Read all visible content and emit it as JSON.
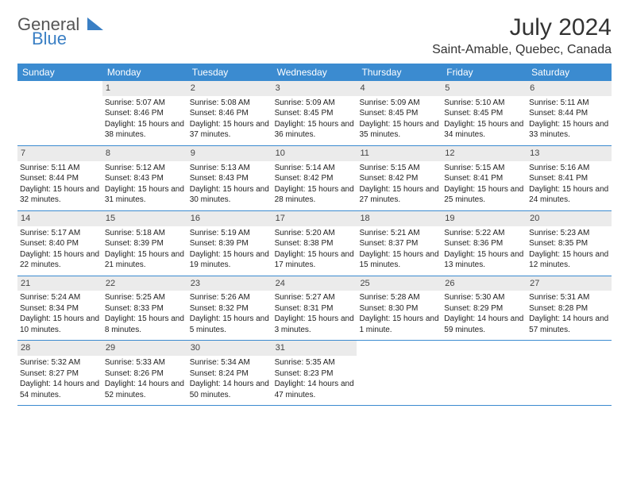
{
  "brand": {
    "general": "General",
    "blue": "Blue"
  },
  "title": "July 2024",
  "subtitle": "Saint-Amable, Quebec, Canada",
  "colors": {
    "header_bg": "#3b8bd0",
    "header_text": "#ffffff",
    "daynum_bg": "#ebebeb",
    "rule": "#3b8bd0",
    "logo_gray": "#555555",
    "logo_blue": "#3a7fc4",
    "text": "#222222"
  },
  "weekdays": [
    "Sunday",
    "Monday",
    "Tuesday",
    "Wednesday",
    "Thursday",
    "Friday",
    "Saturday"
  ],
  "weeks": [
    [
      null,
      {
        "n": "1",
        "sr": "Sunrise: 5:07 AM",
        "ss": "Sunset: 8:46 PM",
        "dl": "Daylight: 15 hours and 38 minutes."
      },
      {
        "n": "2",
        "sr": "Sunrise: 5:08 AM",
        "ss": "Sunset: 8:46 PM",
        "dl": "Daylight: 15 hours and 37 minutes."
      },
      {
        "n": "3",
        "sr": "Sunrise: 5:09 AM",
        "ss": "Sunset: 8:45 PM",
        "dl": "Daylight: 15 hours and 36 minutes."
      },
      {
        "n": "4",
        "sr": "Sunrise: 5:09 AM",
        "ss": "Sunset: 8:45 PM",
        "dl": "Daylight: 15 hours and 35 minutes."
      },
      {
        "n": "5",
        "sr": "Sunrise: 5:10 AM",
        "ss": "Sunset: 8:45 PM",
        "dl": "Daylight: 15 hours and 34 minutes."
      },
      {
        "n": "6",
        "sr": "Sunrise: 5:11 AM",
        "ss": "Sunset: 8:44 PM",
        "dl": "Daylight: 15 hours and 33 minutes."
      }
    ],
    [
      {
        "n": "7",
        "sr": "Sunrise: 5:11 AM",
        "ss": "Sunset: 8:44 PM",
        "dl": "Daylight: 15 hours and 32 minutes."
      },
      {
        "n": "8",
        "sr": "Sunrise: 5:12 AM",
        "ss": "Sunset: 8:43 PM",
        "dl": "Daylight: 15 hours and 31 minutes."
      },
      {
        "n": "9",
        "sr": "Sunrise: 5:13 AM",
        "ss": "Sunset: 8:43 PM",
        "dl": "Daylight: 15 hours and 30 minutes."
      },
      {
        "n": "10",
        "sr": "Sunrise: 5:14 AM",
        "ss": "Sunset: 8:42 PM",
        "dl": "Daylight: 15 hours and 28 minutes."
      },
      {
        "n": "11",
        "sr": "Sunrise: 5:15 AM",
        "ss": "Sunset: 8:42 PM",
        "dl": "Daylight: 15 hours and 27 minutes."
      },
      {
        "n": "12",
        "sr": "Sunrise: 5:15 AM",
        "ss": "Sunset: 8:41 PM",
        "dl": "Daylight: 15 hours and 25 minutes."
      },
      {
        "n": "13",
        "sr": "Sunrise: 5:16 AM",
        "ss": "Sunset: 8:41 PM",
        "dl": "Daylight: 15 hours and 24 minutes."
      }
    ],
    [
      {
        "n": "14",
        "sr": "Sunrise: 5:17 AM",
        "ss": "Sunset: 8:40 PM",
        "dl": "Daylight: 15 hours and 22 minutes."
      },
      {
        "n": "15",
        "sr": "Sunrise: 5:18 AM",
        "ss": "Sunset: 8:39 PM",
        "dl": "Daylight: 15 hours and 21 minutes."
      },
      {
        "n": "16",
        "sr": "Sunrise: 5:19 AM",
        "ss": "Sunset: 8:39 PM",
        "dl": "Daylight: 15 hours and 19 minutes."
      },
      {
        "n": "17",
        "sr": "Sunrise: 5:20 AM",
        "ss": "Sunset: 8:38 PM",
        "dl": "Daylight: 15 hours and 17 minutes."
      },
      {
        "n": "18",
        "sr": "Sunrise: 5:21 AM",
        "ss": "Sunset: 8:37 PM",
        "dl": "Daylight: 15 hours and 15 minutes."
      },
      {
        "n": "19",
        "sr": "Sunrise: 5:22 AM",
        "ss": "Sunset: 8:36 PM",
        "dl": "Daylight: 15 hours and 13 minutes."
      },
      {
        "n": "20",
        "sr": "Sunrise: 5:23 AM",
        "ss": "Sunset: 8:35 PM",
        "dl": "Daylight: 15 hours and 12 minutes."
      }
    ],
    [
      {
        "n": "21",
        "sr": "Sunrise: 5:24 AM",
        "ss": "Sunset: 8:34 PM",
        "dl": "Daylight: 15 hours and 10 minutes."
      },
      {
        "n": "22",
        "sr": "Sunrise: 5:25 AM",
        "ss": "Sunset: 8:33 PM",
        "dl": "Daylight: 15 hours and 8 minutes."
      },
      {
        "n": "23",
        "sr": "Sunrise: 5:26 AM",
        "ss": "Sunset: 8:32 PM",
        "dl": "Daylight: 15 hours and 5 minutes."
      },
      {
        "n": "24",
        "sr": "Sunrise: 5:27 AM",
        "ss": "Sunset: 8:31 PM",
        "dl": "Daylight: 15 hours and 3 minutes."
      },
      {
        "n": "25",
        "sr": "Sunrise: 5:28 AM",
        "ss": "Sunset: 8:30 PM",
        "dl": "Daylight: 15 hours and 1 minute."
      },
      {
        "n": "26",
        "sr": "Sunrise: 5:30 AM",
        "ss": "Sunset: 8:29 PM",
        "dl": "Daylight: 14 hours and 59 minutes."
      },
      {
        "n": "27",
        "sr": "Sunrise: 5:31 AM",
        "ss": "Sunset: 8:28 PM",
        "dl": "Daylight: 14 hours and 57 minutes."
      }
    ],
    [
      {
        "n": "28",
        "sr": "Sunrise: 5:32 AM",
        "ss": "Sunset: 8:27 PM",
        "dl": "Daylight: 14 hours and 54 minutes."
      },
      {
        "n": "29",
        "sr": "Sunrise: 5:33 AM",
        "ss": "Sunset: 8:26 PM",
        "dl": "Daylight: 14 hours and 52 minutes."
      },
      {
        "n": "30",
        "sr": "Sunrise: 5:34 AM",
        "ss": "Sunset: 8:24 PM",
        "dl": "Daylight: 14 hours and 50 minutes."
      },
      {
        "n": "31",
        "sr": "Sunrise: 5:35 AM",
        "ss": "Sunset: 8:23 PM",
        "dl": "Daylight: 14 hours and 47 minutes."
      },
      null,
      null,
      null
    ]
  ]
}
